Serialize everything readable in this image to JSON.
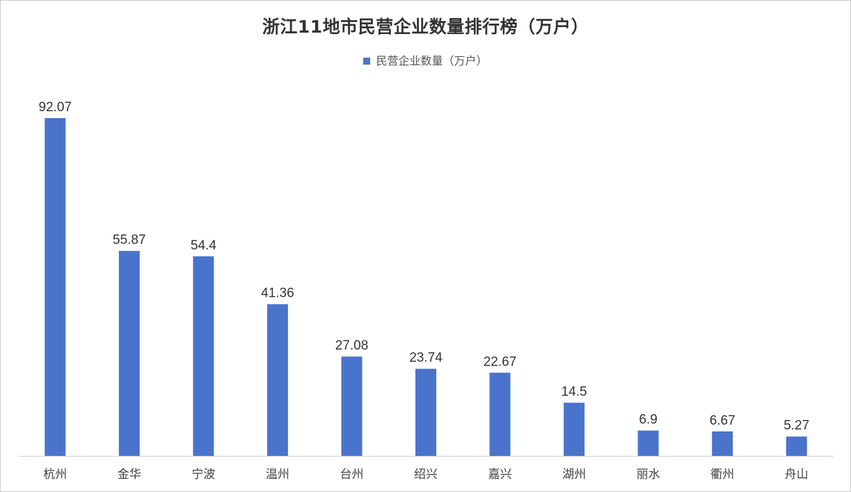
{
  "chart_data": {
    "type": "bar",
    "title": "浙江11地市民营企业数量排行榜（万户）",
    "categories": [
      "杭州",
      "金华",
      "宁波",
      "温州",
      "台州",
      "绍兴",
      "嘉兴",
      "湖州",
      "丽水",
      "衢州",
      "舟山"
    ],
    "series": [
      {
        "name": "民营企业数量（万户）",
        "values": [
          92.07,
          55.87,
          54.4,
          41.36,
          27.08,
          23.74,
          22.67,
          14.5,
          6.9,
          6.67,
          5.27
        ],
        "labels": [
          "92.07",
          "55.87",
          "54.4",
          "41.36",
          "27.08",
          "23.74",
          "22.67",
          "14.5",
          "6.9",
          "6.67",
          "5.27"
        ],
        "color": "#4A74CC"
      }
    ],
    "xlabel": "",
    "ylabel": "",
    "ylim": [
      0,
      92.07
    ],
    "grid": false,
    "legend_position": "top-center",
    "data_labels": true
  }
}
